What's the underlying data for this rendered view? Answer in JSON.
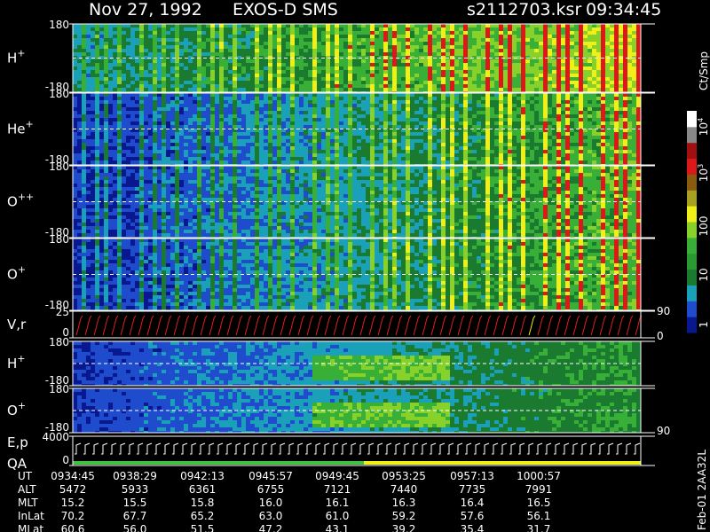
{
  "header": {
    "date": "Nov 27, 1992",
    "instrument": "EXOS-D SMS",
    "file": "s2112703.ksr",
    "time": "09:34:45"
  },
  "panels": [
    {
      "ion": "H",
      "charge": "+",
      "top": "180",
      "bottom": "-180"
    },
    {
      "ion": "He",
      "charge": "+",
      "top": "180",
      "bottom": "-180"
    },
    {
      "ion": "O",
      "charge": "++",
      "top": "180",
      "bottom": "-180"
    },
    {
      "ion": "O",
      "charge": "+",
      "top": "180",
      "bottom": "-180"
    },
    {
      "label": "V,r",
      "top": "25",
      "bottom": "0",
      "right_top": "90",
      "right_bottom": "0"
    },
    {
      "ion": "H",
      "charge": "+",
      "top": "180",
      "bottom": "-180"
    },
    {
      "ion": "O",
      "charge": "+",
      "top": "180",
      "bottom": "-180",
      "right_bottom": "90"
    },
    {
      "label": "E,p",
      "label2": "QA",
      "top": "4000",
      "bottom": "0"
    }
  ],
  "colorbar": {
    "unit": "Ct/Smp",
    "labels": [
      {
        "base": "10",
        "exp": "4"
      },
      {
        "base": "10",
        "exp": "3"
      },
      {
        "base": "100"
      },
      {
        "base": "10"
      },
      {
        "base": "1"
      }
    ]
  },
  "footer": {
    "rows": [
      {
        "name": "UT",
        "values": [
          "0934:45",
          "0938:29",
          "0942:13",
          "0945:57",
          "0949:45",
          "0953:25",
          "0957:13",
          "1000:57"
        ]
      },
      {
        "name": "ALT",
        "values": [
          "5472",
          "5933",
          "6361",
          "6755",
          "7121",
          "7440",
          "7735",
          "7991"
        ]
      },
      {
        "name": "MLT",
        "values": [
          "15.2",
          "15.5",
          "15.8",
          "16.0",
          "16.1",
          "16.3",
          "16.4",
          "16.5"
        ]
      },
      {
        "name": "InLat",
        "values": [
          "70.2",
          "67.7",
          "65.2",
          "63.0",
          "61.0",
          "59.2",
          "57.6",
          "56.1"
        ]
      },
      {
        "name": "MLat",
        "values": [
          "60.6",
          "56.0",
          "51.5",
          "47.2",
          "43.1",
          "39.2",
          "35.4",
          "31.7"
        ]
      }
    ],
    "stamp": "Feb-01 2AA32L"
  }
}
